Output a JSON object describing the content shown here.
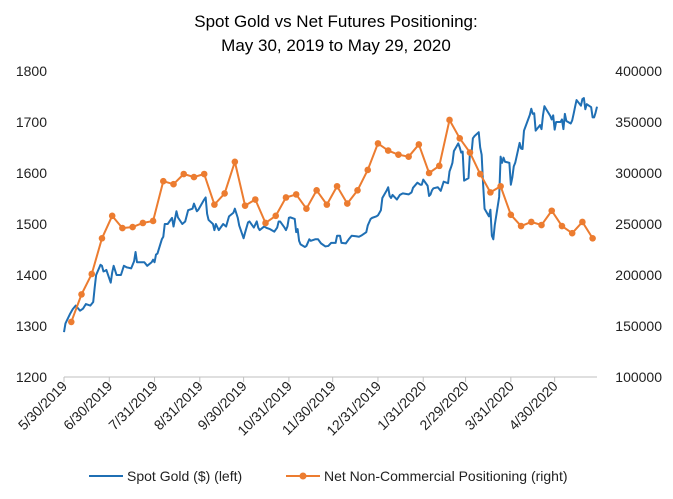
{
  "chart_data": {
    "type": "line",
    "title": [
      "Spot Gold vs Net Futures Positioning:",
      "May 30, 2019 to May 29, 2020"
    ],
    "x_tick_labels": [
      "5/30/2019",
      "6/30/2019",
      "7/31/2019",
      "8/31/2019",
      "9/30/2019",
      "10/31/2019",
      "11/30/2019",
      "12/31/2019",
      "1/31/2020",
      "2/29/2020",
      "3/31/2020",
      "4/30/2020"
    ],
    "y_left": {
      "ylim": [
        1200,
        1800
      ],
      "ticks": [
        "1200",
        "1300",
        "1400",
        "1500",
        "1600",
        "1700",
        "1800"
      ]
    },
    "y_right": {
      "ylim": [
        100000,
        400000
      ],
      "ticks": [
        "100000",
        "150000",
        "200000",
        "250000",
        "300000",
        "350000",
        "400000"
      ]
    },
    "series": [
      {
        "name": "Spot Gold ($) (left)",
        "axis": "left",
        "color": "#1f6fb4",
        "points": [
          [
            "2019-05-30",
            1288
          ],
          [
            "2019-05-31",
            1305
          ],
          [
            "2019-06-03",
            1323
          ],
          [
            "2019-06-05",
            1333
          ],
          [
            "2019-06-07",
            1340
          ],
          [
            "2019-06-10",
            1330
          ],
          [
            "2019-06-12",
            1334
          ],
          [
            "2019-06-14",
            1343
          ],
          [
            "2019-06-17",
            1340
          ],
          [
            "2019-06-19",
            1347
          ],
          [
            "2019-06-20",
            1375
          ],
          [
            "2019-06-21",
            1400
          ],
          [
            "2019-06-24",
            1420
          ],
          [
            "2019-06-25",
            1418
          ],
          [
            "2019-06-26",
            1407
          ],
          [
            "2019-06-27",
            1408
          ],
          [
            "2019-06-28",
            1410
          ],
          [
            "2019-07-01",
            1385
          ],
          [
            "2019-07-02",
            1405
          ],
          [
            "2019-07-03",
            1418
          ],
          [
            "2019-07-05",
            1400
          ],
          [
            "2019-07-08",
            1400
          ],
          [
            "2019-07-10",
            1418
          ],
          [
            "2019-07-12",
            1415
          ],
          [
            "2019-07-15",
            1413
          ],
          [
            "2019-07-17",
            1427
          ],
          [
            "2019-07-18",
            1445
          ],
          [
            "2019-07-19",
            1425
          ],
          [
            "2019-07-22",
            1425
          ],
          [
            "2019-07-24",
            1425
          ],
          [
            "2019-07-26",
            1418
          ],
          [
            "2019-07-29",
            1425
          ],
          [
            "2019-07-30",
            1430
          ],
          [
            "2019-07-31",
            1425
          ],
          [
            "2019-08-01",
            1440
          ],
          [
            "2019-08-02",
            1442
          ],
          [
            "2019-08-05",
            1470
          ],
          [
            "2019-08-06",
            1475
          ],
          [
            "2019-08-07",
            1500
          ],
          [
            "2019-08-09",
            1500
          ],
          [
            "2019-08-12",
            1512
          ],
          [
            "2019-08-13",
            1495
          ],
          [
            "2019-08-15",
            1525
          ],
          [
            "2019-08-16",
            1513
          ],
          [
            "2019-08-19",
            1500
          ],
          [
            "2019-08-21",
            1505
          ],
          [
            "2019-08-23",
            1527
          ],
          [
            "2019-08-26",
            1530
          ],
          [
            "2019-08-27",
            1540
          ],
          [
            "2019-08-29",
            1525
          ],
          [
            "2019-08-30",
            1528
          ],
          [
            "2019-09-03",
            1548
          ],
          [
            "2019-09-04",
            1552
          ],
          [
            "2019-09-05",
            1520
          ],
          [
            "2019-09-06",
            1508
          ],
          [
            "2019-09-09",
            1500
          ],
          [
            "2019-09-10",
            1488
          ],
          [
            "2019-09-11",
            1500
          ],
          [
            "2019-09-13",
            1488
          ],
          [
            "2019-09-16",
            1500
          ],
          [
            "2019-09-18",
            1495
          ],
          [
            "2019-09-20",
            1515
          ],
          [
            "2019-09-23",
            1522
          ],
          [
            "2019-09-24",
            1530
          ],
          [
            "2019-09-26",
            1512
          ],
          [
            "2019-09-27",
            1497
          ],
          [
            "2019-09-30",
            1472
          ],
          [
            "2019-10-01",
            1483
          ],
          [
            "2019-10-03",
            1503
          ],
          [
            "2019-10-04",
            1505
          ],
          [
            "2019-10-07",
            1493
          ],
          [
            "2019-10-09",
            1505
          ],
          [
            "2019-10-10",
            1493
          ],
          [
            "2019-10-11",
            1488
          ],
          [
            "2019-10-14",
            1495
          ],
          [
            "2019-10-16",
            1492
          ],
          [
            "2019-10-18",
            1490
          ],
          [
            "2019-10-21",
            1485
          ],
          [
            "2019-10-23",
            1493
          ],
          [
            "2019-10-24",
            1505
          ],
          [
            "2019-10-25",
            1505
          ],
          [
            "2019-10-28",
            1493
          ],
          [
            "2019-10-29",
            1488
          ],
          [
            "2019-10-30",
            1495
          ],
          [
            "2019-10-31",
            1512
          ],
          [
            "2019-11-01",
            1513
          ],
          [
            "2019-11-04",
            1510
          ],
          [
            "2019-11-05",
            1484
          ],
          [
            "2019-11-06",
            1490
          ],
          [
            "2019-11-07",
            1467
          ],
          [
            "2019-11-08",
            1460
          ],
          [
            "2019-11-11",
            1455
          ],
          [
            "2019-11-12",
            1457
          ],
          [
            "2019-11-14",
            1470
          ],
          [
            "2019-11-15",
            1467
          ],
          [
            "2019-11-18",
            1470
          ],
          [
            "2019-11-20",
            1470
          ],
          [
            "2019-11-22",
            1462
          ],
          [
            "2019-11-25",
            1456
          ],
          [
            "2019-11-27",
            1457
          ],
          [
            "2019-11-29",
            1463
          ],
          [
            "2019-12-02",
            1463
          ],
          [
            "2019-12-03",
            1477
          ],
          [
            "2019-12-05",
            1477
          ],
          [
            "2019-12-06",
            1463
          ],
          [
            "2019-12-09",
            1462
          ],
          [
            "2019-12-11",
            1470
          ],
          [
            "2019-12-13",
            1477
          ],
          [
            "2019-12-16",
            1476
          ],
          [
            "2019-12-18",
            1475
          ],
          [
            "2019-12-20",
            1478
          ],
          [
            "2019-12-23",
            1484
          ],
          [
            "2019-12-24",
            1497
          ],
          [
            "2019-12-26",
            1510
          ],
          [
            "2019-12-27",
            1512
          ],
          [
            "2019-12-30",
            1515
          ],
          [
            "2019-12-31",
            1517
          ],
          [
            "2020-01-02",
            1527
          ],
          [
            "2020-01-03",
            1551
          ],
          [
            "2020-01-06",
            1566
          ],
          [
            "2020-01-07",
            1572
          ],
          [
            "2020-01-08",
            1555
          ],
          [
            "2020-01-09",
            1551
          ],
          [
            "2020-01-10",
            1557
          ],
          [
            "2020-01-13",
            1548
          ],
          [
            "2020-01-15",
            1557
          ],
          [
            "2020-01-17",
            1560
          ],
          [
            "2020-01-21",
            1558
          ],
          [
            "2020-01-23",
            1562
          ],
          [
            "2020-01-24",
            1571
          ],
          [
            "2020-01-27",
            1581
          ],
          [
            "2020-01-29",
            1577
          ],
          [
            "2020-01-30",
            1577
          ],
          [
            "2020-01-31",
            1587
          ],
          [
            "2020-02-03",
            1575
          ],
          [
            "2020-02-04",
            1555
          ],
          [
            "2020-02-05",
            1558
          ],
          [
            "2020-02-06",
            1566
          ],
          [
            "2020-02-07",
            1570
          ],
          [
            "2020-02-10",
            1572
          ],
          [
            "2020-02-12",
            1565
          ],
          [
            "2020-02-14",
            1583
          ],
          [
            "2020-02-17",
            1580
          ],
          [
            "2020-02-18",
            1603
          ],
          [
            "2020-02-19",
            1611
          ],
          [
            "2020-02-20",
            1620
          ],
          [
            "2020-02-21",
            1643
          ],
          [
            "2020-02-24",
            1658
          ],
          [
            "2020-02-25",
            1650
          ],
          [
            "2020-02-26",
            1640
          ],
          [
            "2020-02-27",
            1642
          ],
          [
            "2020-02-28",
            1585
          ],
          [
            "2020-03-02",
            1590
          ],
          [
            "2020-03-03",
            1640
          ],
          [
            "2020-03-04",
            1636
          ],
          [
            "2020-03-05",
            1668
          ],
          [
            "2020-03-06",
            1672
          ],
          [
            "2020-03-09",
            1680
          ],
          [
            "2020-03-10",
            1650
          ],
          [
            "2020-03-11",
            1636
          ],
          [
            "2020-03-12",
            1578
          ],
          [
            "2020-03-13",
            1530
          ],
          [
            "2020-03-16",
            1515
          ],
          [
            "2020-03-17",
            1528
          ],
          [
            "2020-03-18",
            1477
          ],
          [
            "2020-03-19",
            1470
          ],
          [
            "2020-03-20",
            1498
          ],
          [
            "2020-03-23",
            1553
          ],
          [
            "2020-03-24",
            1632
          ],
          [
            "2020-03-25",
            1620
          ],
          [
            "2020-03-26",
            1630
          ],
          [
            "2020-03-27",
            1622
          ],
          [
            "2020-03-30",
            1620
          ],
          [
            "2020-03-31",
            1577
          ],
          [
            "2020-04-01",
            1591
          ],
          [
            "2020-04-02",
            1613
          ],
          [
            "2020-04-03",
            1620
          ],
          [
            "2020-04-06",
            1659
          ],
          [
            "2020-04-07",
            1648
          ],
          [
            "2020-04-08",
            1647
          ],
          [
            "2020-04-09",
            1683
          ],
          [
            "2020-04-13",
            1714
          ],
          [
            "2020-04-14",
            1726
          ],
          [
            "2020-04-15",
            1716
          ],
          [
            "2020-04-16",
            1717
          ],
          [
            "2020-04-17",
            1683
          ],
          [
            "2020-04-20",
            1694
          ],
          [
            "2020-04-21",
            1686
          ],
          [
            "2020-04-22",
            1713
          ],
          [
            "2020-04-23",
            1731
          ],
          [
            "2020-04-24",
            1726
          ],
          [
            "2020-04-27",
            1712
          ],
          [
            "2020-04-28",
            1705
          ],
          [
            "2020-04-29",
            1713
          ],
          [
            "2020-04-30",
            1685
          ],
          [
            "2020-05-01",
            1700
          ],
          [
            "2020-05-04",
            1700
          ],
          [
            "2020-05-05",
            1705
          ],
          [
            "2020-05-06",
            1686
          ],
          [
            "2020-05-07",
            1716
          ],
          [
            "2020-05-08",
            1702
          ],
          [
            "2020-05-11",
            1697
          ],
          [
            "2020-05-12",
            1703
          ],
          [
            "2020-05-13",
            1716
          ],
          [
            "2020-05-14",
            1730
          ],
          [
            "2020-05-15",
            1743
          ],
          [
            "2020-05-18",
            1732
          ],
          [
            "2020-05-19",
            1745
          ],
          [
            "2020-05-20",
            1747
          ],
          [
            "2020-05-21",
            1725
          ],
          [
            "2020-05-22",
            1735
          ],
          [
            "2020-05-25",
            1729
          ],
          [
            "2020-05-26",
            1709
          ],
          [
            "2020-05-27",
            1709
          ],
          [
            "2020-05-28",
            1718
          ],
          [
            "2020-05-29",
            1730
          ]
        ]
      },
      {
        "name": "Net Non-Commercial Positioning (right)",
        "axis": "right",
        "color": "#ec7c30",
        "points": [
          [
            "2019-06-04",
            154000
          ],
          [
            "2019-06-11",
            181000
          ],
          [
            "2019-06-18",
            201000
          ],
          [
            "2019-06-25",
            236000
          ],
          [
            "2019-07-02",
            258000
          ],
          [
            "2019-07-09",
            246000
          ],
          [
            "2019-07-16",
            247000
          ],
          [
            "2019-07-23",
            251000
          ],
          [
            "2019-07-30",
            253000
          ],
          [
            "2019-08-06",
            292000
          ],
          [
            "2019-08-13",
            289000
          ],
          [
            "2019-08-20",
            299000
          ],
          [
            "2019-08-27",
            296000
          ],
          [
            "2019-09-03",
            299000
          ],
          [
            "2019-09-10",
            269000
          ],
          [
            "2019-09-17",
            280000
          ],
          [
            "2019-09-24",
            311000
          ],
          [
            "2019-10-01",
            268000
          ],
          [
            "2019-10-08",
            274000
          ],
          [
            "2019-10-15",
            251000
          ],
          [
            "2019-10-22",
            258000
          ],
          [
            "2019-10-29",
            276000
          ],
          [
            "2019-11-05",
            279000
          ],
          [
            "2019-11-12",
            265000
          ],
          [
            "2019-11-19",
            283000
          ],
          [
            "2019-11-26",
            269000
          ],
          [
            "2019-12-03",
            287000
          ],
          [
            "2019-12-10",
            270000
          ],
          [
            "2019-12-17",
            283000
          ],
          [
            "2019-12-24",
            303000
          ],
          [
            "2019-12-31",
            329000
          ],
          [
            "2020-01-07",
            322000
          ],
          [
            "2020-01-14",
            318000
          ],
          [
            "2020-01-21",
            316000
          ],
          [
            "2020-01-28",
            328000
          ],
          [
            "2020-02-04",
            300000
          ],
          [
            "2020-02-11",
            307000
          ],
          [
            "2020-02-18",
            352000
          ],
          [
            "2020-02-25",
            334000
          ],
          [
            "2020-03-03",
            320000
          ],
          [
            "2020-03-10",
            299000
          ],
          [
            "2020-03-17",
            281000
          ],
          [
            "2020-03-24",
            287000
          ],
          [
            "2020-03-31",
            259000
          ],
          [
            "2020-04-07",
            248000
          ],
          [
            "2020-04-14",
            252000
          ],
          [
            "2020-04-21",
            249000
          ],
          [
            "2020-04-28",
            263000
          ],
          [
            "2020-05-05",
            248000
          ],
          [
            "2020-05-12",
            241000
          ],
          [
            "2020-05-19",
            252000
          ],
          [
            "2020-05-26",
            236000
          ]
        ]
      }
    ],
    "legend": {
      "placement": "bottom"
    },
    "grid": false
  }
}
